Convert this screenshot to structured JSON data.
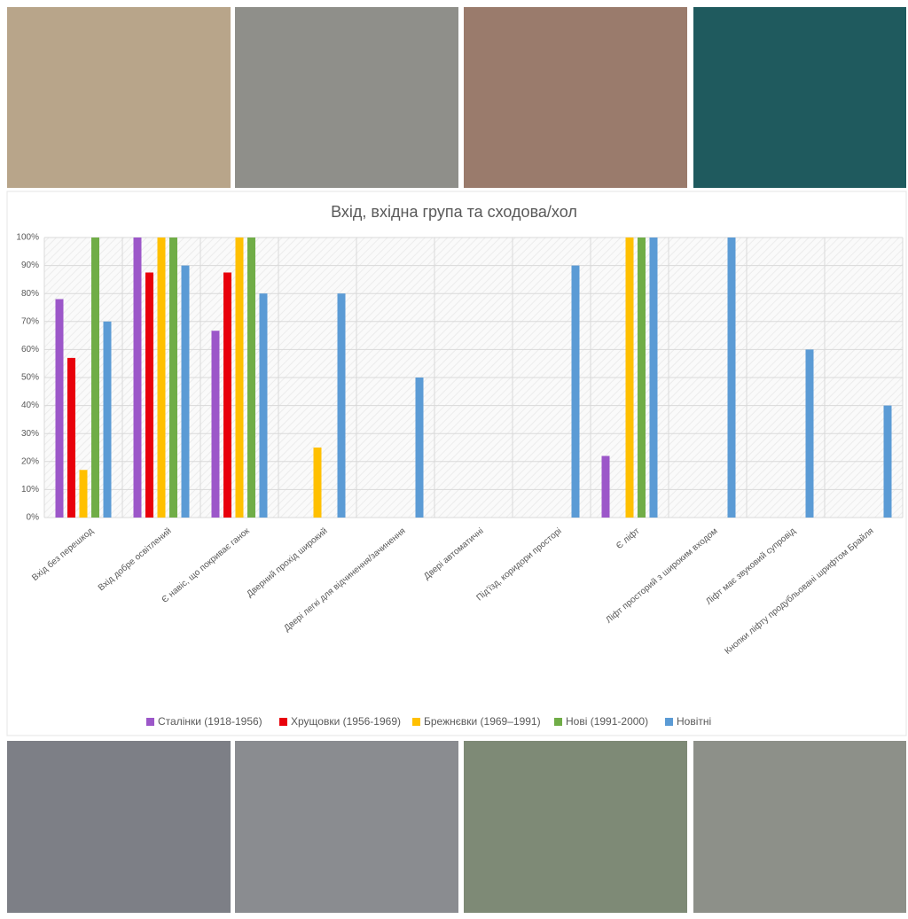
{
  "chart_data": {
    "type": "bar",
    "title": "Вхід, вхідна група та сходова/хол",
    "categories": [
      "Вхід без перешкод",
      "Вхід добре освітлений",
      "Є навіс, що покриває ганок",
      "Дверний прохід широкий",
      "Двері легкі для відчинення/зачинення",
      "Двері автоматичні",
      "Під'їзд, коридори просторі",
      "Є ліфт",
      "Ліфт просторий з широким входом",
      "Ліфт має звуковий супровід",
      "Кнопки ліфту продубльовані шрифтом Брайля"
    ],
    "series": [
      {
        "name": "Сталінки (1918-1956)",
        "color": "#9c57c9",
        "values": [
          78,
          100,
          66.7,
          0,
          0,
          0,
          0,
          22,
          0,
          0,
          0
        ]
      },
      {
        "name": "Хрущовки (1956-1969)",
        "color": "#e8000b",
        "values": [
          57,
          87.5,
          87.5,
          0,
          0,
          0,
          0,
          0,
          0,
          0,
          0
        ]
      },
      {
        "name": "Брежнєвки (1969–1991)",
        "color": "#ffc000",
        "values": [
          17,
          100,
          100,
          25,
          0,
          0,
          0,
          100,
          0,
          0,
          0
        ]
      },
      {
        "name": "Нові (1991-2000)",
        "color": "#70ad47",
        "values": [
          100,
          100,
          100,
          0,
          0,
          0,
          0,
          100,
          0,
          0,
          0
        ]
      },
      {
        "name": "Новітні",
        "color": "#5b9bd5",
        "values": [
          70,
          90,
          80,
          80,
          50,
          0,
          90,
          100,
          100,
          60,
          40
        ]
      }
    ],
    "ylim": [
      0,
      100
    ],
    "yticks": [
      {
        "value": 0,
        "label": "0%"
      },
      {
        "value": 10,
        "label": "10%"
      },
      {
        "value": 20,
        "label": "20%"
      },
      {
        "value": 30,
        "label": "30%"
      },
      {
        "value": 40,
        "label": "40%"
      },
      {
        "value": 50,
        "label": "50%"
      },
      {
        "value": 60,
        "label": "60%"
      },
      {
        "value": 70,
        "label": "70%"
      },
      {
        "value": 80,
        "label": "80%"
      },
      {
        "value": 90,
        "label": "90%"
      },
      {
        "value": 100,
        "label": "100%"
      }
    ],
    "grid": true,
    "legend": "bottom"
  }
}
